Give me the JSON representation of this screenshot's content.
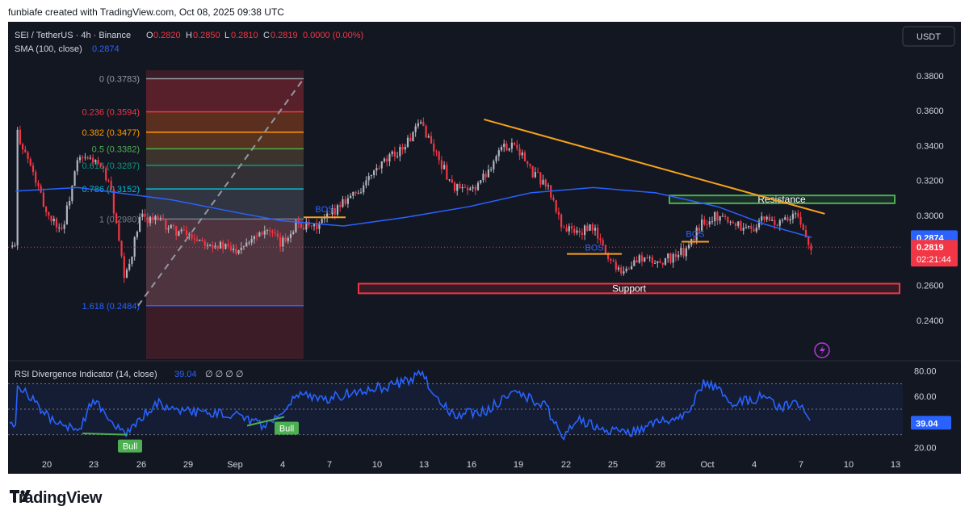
{
  "caption": "funbiafe created with TradingView.com, Oct 08, 2025 09:38 UTC",
  "header": {
    "symbol": "SEI / TetherUS · 4h · Binance",
    "o_label": "O",
    "o_val": "0.2820",
    "h_label": "H",
    "h_val": "0.2850",
    "l_label": "L",
    "l_val": "0.2810",
    "c_label": "C",
    "c_val": "0.2819",
    "change": "0.0000 (0.00%)",
    "sma_label": "SMA (100, close)",
    "sma_val": "0.2874",
    "currency_button": "USDT"
  },
  "rsi_header": {
    "label": "RSI Divergence Indicator (14, close)",
    "value": "39.04",
    "extras": "∅ ∅ ∅ ∅"
  },
  "logo_text": "TradingView",
  "colors": {
    "background": "#131722",
    "bull_candle": "#b2b5be",
    "bear_candle": "#f23645",
    "sma": "#2962ff",
    "rsi": "#2962ff",
    "trendline": "#f7a21b",
    "resistance": "#4caf50",
    "support": "#f23645",
    "price_tag": "#f23645",
    "sma_tag": "#2962ff"
  },
  "chart_data": {
    "type": "candlestick",
    "title": "SEI / TetherUS · 4h · Binance",
    "ylim": [
      0.2178,
      0.3924
    ],
    "y_ticks": [
      "0.3800",
      "0.3600",
      "0.3400",
      "0.3200",
      "0.3000",
      "0.2600",
      "0.2400"
    ],
    "x_ticks": [
      "20",
      "23",
      "26",
      "29",
      "Sep",
      "4",
      "7",
      "10",
      "13",
      "16",
      "19",
      "22",
      "25",
      "28",
      "Oct",
      "4",
      "7",
      "10",
      "13"
    ],
    "last_price": "0.2819",
    "countdown": "02:21:44",
    "sma_value": "0.2874",
    "price_path": [
      {
        "date": "Aug 18",
        "price": 0.35
      },
      {
        "date": "Aug 19",
        "price": 0.327
      },
      {
        "date": "Aug 20",
        "price": 0.301
      },
      {
        "date": "Aug 21",
        "price": 0.292
      },
      {
        "date": "Aug 22",
        "price": 0.332
      },
      {
        "date": "Aug 23",
        "price": 0.332
      },
      {
        "date": "Aug 24",
        "price": 0.32
      },
      {
        "date": "Aug 25",
        "price": 0.262
      },
      {
        "date": "Aug 26",
        "price": 0.299
      },
      {
        "date": "Aug 27",
        "price": 0.298
      },
      {
        "date": "Aug 28",
        "price": 0.292
      },
      {
        "date": "Aug 29",
        "price": 0.289
      },
      {
        "date": "Aug 30",
        "price": 0.286
      },
      {
        "date": "Sep 1",
        "price": 0.28
      },
      {
        "date": "Sep 2",
        "price": 0.287
      },
      {
        "date": "Sep 3",
        "price": 0.293
      },
      {
        "date": "Sep 4",
        "price": 0.283
      },
      {
        "date": "Sep 5",
        "price": 0.296
      },
      {
        "date": "Sep 6",
        "price": 0.292
      },
      {
        "date": "Sep 7",
        "price": 0.299
      },
      {
        "date": "Sep 8",
        "price": 0.309
      },
      {
        "date": "Sep 9",
        "price": 0.314
      },
      {
        "date": "Sep 10",
        "price": 0.325
      },
      {
        "date": "Sep 11",
        "price": 0.333
      },
      {
        "date": "Sep 12",
        "price": 0.341
      },
      {
        "date": "Sep 13",
        "price": 0.353
      },
      {
        "date": "Sep 14",
        "price": 0.334
      },
      {
        "date": "Sep 15",
        "price": 0.317
      },
      {
        "date": "Sep 16",
        "price": 0.313
      },
      {
        "date": "Sep 17",
        "price": 0.322
      },
      {
        "date": "Sep 18",
        "price": 0.338
      },
      {
        "date": "Sep 19",
        "price": 0.342
      },
      {
        "date": "Sep 20",
        "price": 0.325
      },
      {
        "date": "Sep 21",
        "price": 0.318
      },
      {
        "date": "Sep 22",
        "price": 0.294
      },
      {
        "date": "Sep 23",
        "price": 0.29
      },
      {
        "date": "Sep 24",
        "price": 0.293
      },
      {
        "date": "Sep 25",
        "price": 0.275
      },
      {
        "date": "Sep 26",
        "price": 0.268
      },
      {
        "date": "Sep 27",
        "price": 0.276
      },
      {
        "date": "Sep 28",
        "price": 0.273
      },
      {
        "date": "Sep 29",
        "price": 0.276
      },
      {
        "date": "Sep 30",
        "price": 0.28
      },
      {
        "date": "Oct 1",
        "price": 0.297
      },
      {
        "date": "Oct 2",
        "price": 0.3
      },
      {
        "date": "Oct 3",
        "price": 0.296
      },
      {
        "date": "Oct 4",
        "price": 0.292
      },
      {
        "date": "Oct 5",
        "price": 0.298
      },
      {
        "date": "Oct 6",
        "price": 0.295
      },
      {
        "date": "Oct 7",
        "price": 0.3
      },
      {
        "date": "Oct 8",
        "price": 0.2819
      }
    ],
    "sma_path": [
      {
        "date": "Aug 18",
        "price": 0.314
      },
      {
        "date": "Aug 22",
        "price": 0.316
      },
      {
        "date": "Aug 28",
        "price": 0.309
      },
      {
        "date": "Sep 1",
        "price": 0.302
      },
      {
        "date": "Sep 4",
        "price": 0.297
      },
      {
        "date": "Sep 8",
        "price": 0.294
      },
      {
        "date": "Sep 12",
        "price": 0.299
      },
      {
        "date": "Sep 16",
        "price": 0.305
      },
      {
        "date": "Sep 20",
        "price": 0.313
      },
      {
        "date": "Sep 24",
        "price": 0.316
      },
      {
        "date": "Sep 28",
        "price": 0.313
      },
      {
        "date": "Oct 2",
        "price": 0.305
      },
      {
        "date": "Oct 5",
        "price": 0.295
      },
      {
        "date": "Oct 8",
        "price": 0.2874
      }
    ],
    "fibonacci": [
      {
        "label": "0 (0.3783)",
        "level": 0.3783,
        "color": "#9598a1"
      },
      {
        "label": "0.236 (0.3594)",
        "level": 0.3594,
        "color": "#f23645"
      },
      {
        "label": "0.382 (0.3477)",
        "level": 0.3477,
        "color": "#ff9800"
      },
      {
        "label": "0.5 (0.3382)",
        "level": 0.3382,
        "color": "#4caf50"
      },
      {
        "label": "0.618 (0.3287)",
        "level": 0.3287,
        "color": "#089981"
      },
      {
        "label": "0.786 (0.3152)",
        "level": 0.3152,
        "color": "#00bcd4"
      },
      {
        "label": "1 (0.2980)",
        "level": 0.298,
        "color": "#787b86"
      },
      {
        "label": "1.618 (0.2484)",
        "level": 0.2484,
        "color": "#2962ff"
      }
    ],
    "annotations": [
      {
        "text": "Resistance",
        "zone": [
          0.307,
          0.3115
        ]
      },
      {
        "text": "Support",
        "zone": [
          0.2555,
          0.261
        ]
      },
      {
        "text": "BOS",
        "level": 0.299
      },
      {
        "text": "BOS",
        "level": 0.278
      },
      {
        "text": "BOS",
        "level": 0.285
      }
    ],
    "trendline": [
      {
        "date": "Sep 17",
        "price": 0.355
      },
      {
        "date": "Oct 8",
        "price": 0.301
      }
    ],
    "rsi": {
      "ylim": [
        12,
        88
      ],
      "y_ticks": [
        "80.00",
        "60.00",
        "20.00"
      ],
      "bands": [
        30,
        50,
        70
      ],
      "current": "39.04",
      "divergence_labels": [
        "Bull",
        "Bull"
      ],
      "path": [
        {
          "date": "Aug 18",
          "value": 72
        },
        {
          "date": "Aug 20",
          "value": 45
        },
        {
          "date": "Aug 22",
          "value": 32
        },
        {
          "date": "Aug 23",
          "value": 58
        },
        {
          "date": "Aug 25",
          "value": 30
        },
        {
          "date": "Aug 27",
          "value": 55
        },
        {
          "date": "Aug 29",
          "value": 48
        },
        {
          "date": "Sep 1",
          "value": 46
        },
        {
          "date": "Sep 3",
          "value": 36
        },
        {
          "date": "Sep 5",
          "value": 62
        },
        {
          "date": "Sep 7",
          "value": 58
        },
        {
          "date": "Sep 9",
          "value": 65
        },
        {
          "date": "Sep 11",
          "value": 68
        },
        {
          "date": "Sep 13",
          "value": 77
        },
        {
          "date": "Sep 15",
          "value": 45
        },
        {
          "date": "Sep 17",
          "value": 48
        },
        {
          "date": "Sep 19",
          "value": 64
        },
        {
          "date": "Sep 21",
          "value": 52
        },
        {
          "date": "Sep 22",
          "value": 28
        },
        {
          "date": "Sep 23",
          "value": 42
        },
        {
          "date": "Sep 25",
          "value": 34
        },
        {
          "date": "Sep 26",
          "value": 30
        },
        {
          "date": "Sep 28",
          "value": 40
        },
        {
          "date": "Sep 30",
          "value": 45
        },
        {
          "date": "Oct 1",
          "value": 70
        },
        {
          "date": "Oct 2",
          "value": 66
        },
        {
          "date": "Oct 3",
          "value": 55
        },
        {
          "date": "Oct 5",
          "value": 60
        },
        {
          "date": "Oct 6",
          "value": 50
        },
        {
          "date": "Oct 7",
          "value": 58
        },
        {
          "date": "Oct 8",
          "value": 39.04
        }
      ]
    }
  }
}
